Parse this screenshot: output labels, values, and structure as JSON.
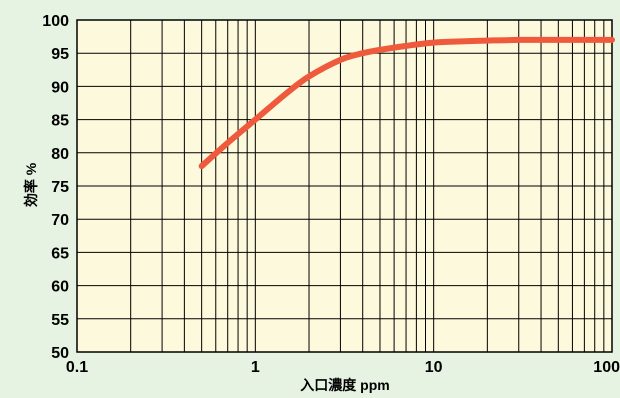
{
  "chart_data": {
    "type": "line",
    "title": "",
    "xlabel": "入口濃度 ppm",
    "ylabel": "効率 %",
    "x_scale": "log",
    "xlim": [
      0.1,
      100
    ],
    "ylim": [
      50,
      100
    ],
    "x_ticks": [
      "0.1",
      "1",
      "10",
      "100"
    ],
    "y_ticks": [
      "50",
      "55",
      "60",
      "65",
      "70",
      "75",
      "80",
      "85",
      "90",
      "95",
      "100"
    ],
    "grid": true,
    "legend": "none",
    "series": [
      {
        "color": "#ef5a3c",
        "x": [
          0.5,
          0.7,
          1,
          1.5,
          2,
          3,
          4,
          5,
          7,
          10,
          15,
          20,
          30,
          50,
          70,
          100
        ],
        "y": [
          78,
          81.5,
          85,
          89,
          91.5,
          94,
          95,
          95.5,
          96.1,
          96.6,
          96.8,
          96.9,
          97,
          97,
          97,
          97
        ]
      }
    ],
    "colors": {
      "plot_bg": "#fdf9dc",
      "page_bg": "#e6f2e2",
      "grid": "#000000"
    }
  }
}
